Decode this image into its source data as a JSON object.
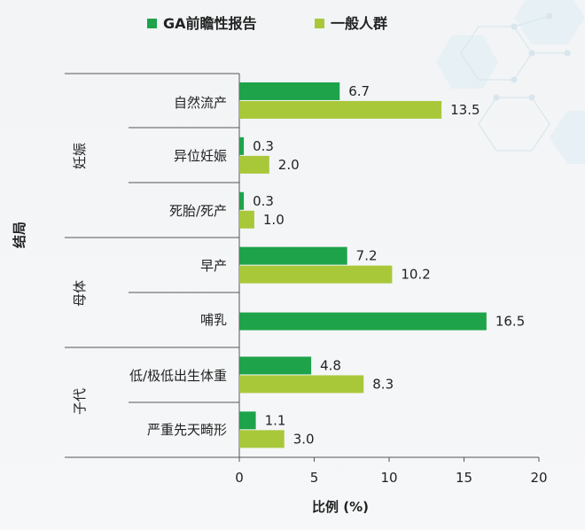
{
  "chart_data": {
    "type": "bar",
    "orientation": "horizontal",
    "legend": [
      {
        "name": "GA前瞻性报告",
        "color": "#1ea34a"
      },
      {
        "name": "一般人群",
        "color": "#a8c83a"
      }
    ],
    "xlabel": "比例 (%)",
    "ylabel": "结局",
    "xlim": [
      0,
      20
    ],
    "xticks": [
      "0",
      "5",
      "10",
      "15",
      "20"
    ],
    "legend_position": "top",
    "groups": [
      {
        "name": "妊娠",
        "categories": [
          "自然流产",
          "异位妊娠",
          "死胎/死产"
        ]
      },
      {
        "name": "母体",
        "categories": [
          "早产",
          "哺乳"
        ]
      },
      {
        "name": "子代",
        "categories": [
          "低/极低出生体重",
          "严重先天畸形"
        ]
      }
    ],
    "categories": [
      "自然流产",
      "异位妊娠",
      "死胎/死产",
      "早产",
      "哺乳",
      "低/极低出生体重",
      "严重先天畸形"
    ],
    "series": [
      {
        "name": "GA前瞻性报告",
        "color": "#1ea34a",
        "values": [
          6.7,
          0.3,
          0.3,
          7.2,
          16.5,
          4.8,
          1.1
        ]
      },
      {
        "name": "一般人群",
        "color": "#a8c83a",
        "values": [
          13.5,
          2.0,
          1.0,
          10.2,
          null,
          8.3,
          3.0
        ]
      }
    ],
    "value_labels": [
      [
        "6.7",
        "0.3",
        "0.3",
        "7.2",
        "16.5",
        "4.8",
        "1.1"
      ],
      [
        "13.5",
        "2.0",
        "1.0",
        "10.2",
        "",
        "8.3",
        "3.0"
      ]
    ]
  }
}
